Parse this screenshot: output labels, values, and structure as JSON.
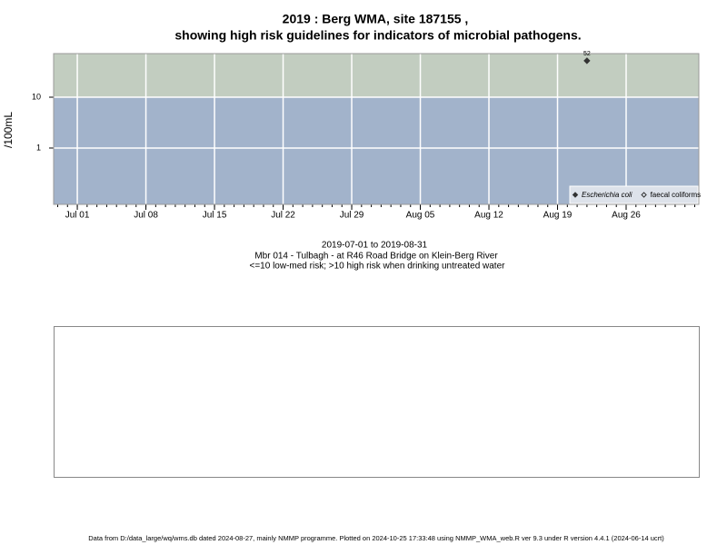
{
  "chart_data": {
    "type": "scatter",
    "title": "2019 : Berg WMA, site 187155 ,",
    "title_line2": "showing high risk guidelines for indicators of microbial pathogens.",
    "y_label": "/100mL",
    "log_y": true,
    "ylim": [
      0.078,
      72
    ],
    "yticks": [
      1,
      10
    ],
    "xlim": [
      "2019-06-28T14:00",
      "2019-09-02T10:00"
    ],
    "xticks": [
      {
        "value": "2019-07-01",
        "label": "Jul 01"
      },
      {
        "value": "2019-07-08",
        "label": "Jul 08"
      },
      {
        "value": "2019-07-15",
        "label": "Jul 15"
      },
      {
        "value": "2019-07-22",
        "label": "Jul 22"
      },
      {
        "value": "2019-07-29",
        "label": "Jul 29"
      },
      {
        "value": "2019-08-05",
        "label": "Aug 05"
      },
      {
        "value": "2019-08-12",
        "label": "Aug 12"
      },
      {
        "value": "2019-08-19",
        "label": "Aug 19"
      },
      {
        "value": "2019-08-26",
        "label": "Aug 26"
      }
    ],
    "threshold": 10,
    "low_band_color": "#a2b3cb",
    "high_band_color": "#c2cdc0",
    "grid": true,
    "legend_position": "bottom-right",
    "series": [
      {
        "name": "Escherichia coli",
        "color": "#333333",
        "filled": true,
        "x": [
          "2019-08-22"
        ],
        "values": [
          52
        ]
      },
      {
        "name": "faecal coliforms",
        "color": "#333333",
        "filled": false,
        "x": [],
        "values": []
      }
    ],
    "date_range": "2019-07-01 to 2019-08-31",
    "site_description": "Mbr 014 - Tulbagh - at R46 Road Bridge on Klein-Berg River",
    "risk_note": "<=10 low-med risk; >10 high risk when drinking untreated water",
    "footer": "Data from D:/data_large/wq/wms.db dated 2024-08-27, mainly NMMP programme. Plotted on 2024-10-25 17:33:48 using NMMP_WMA_web.R ver 9.3 under R version 4.4.1 (2024-06-14 ucrt)"
  }
}
